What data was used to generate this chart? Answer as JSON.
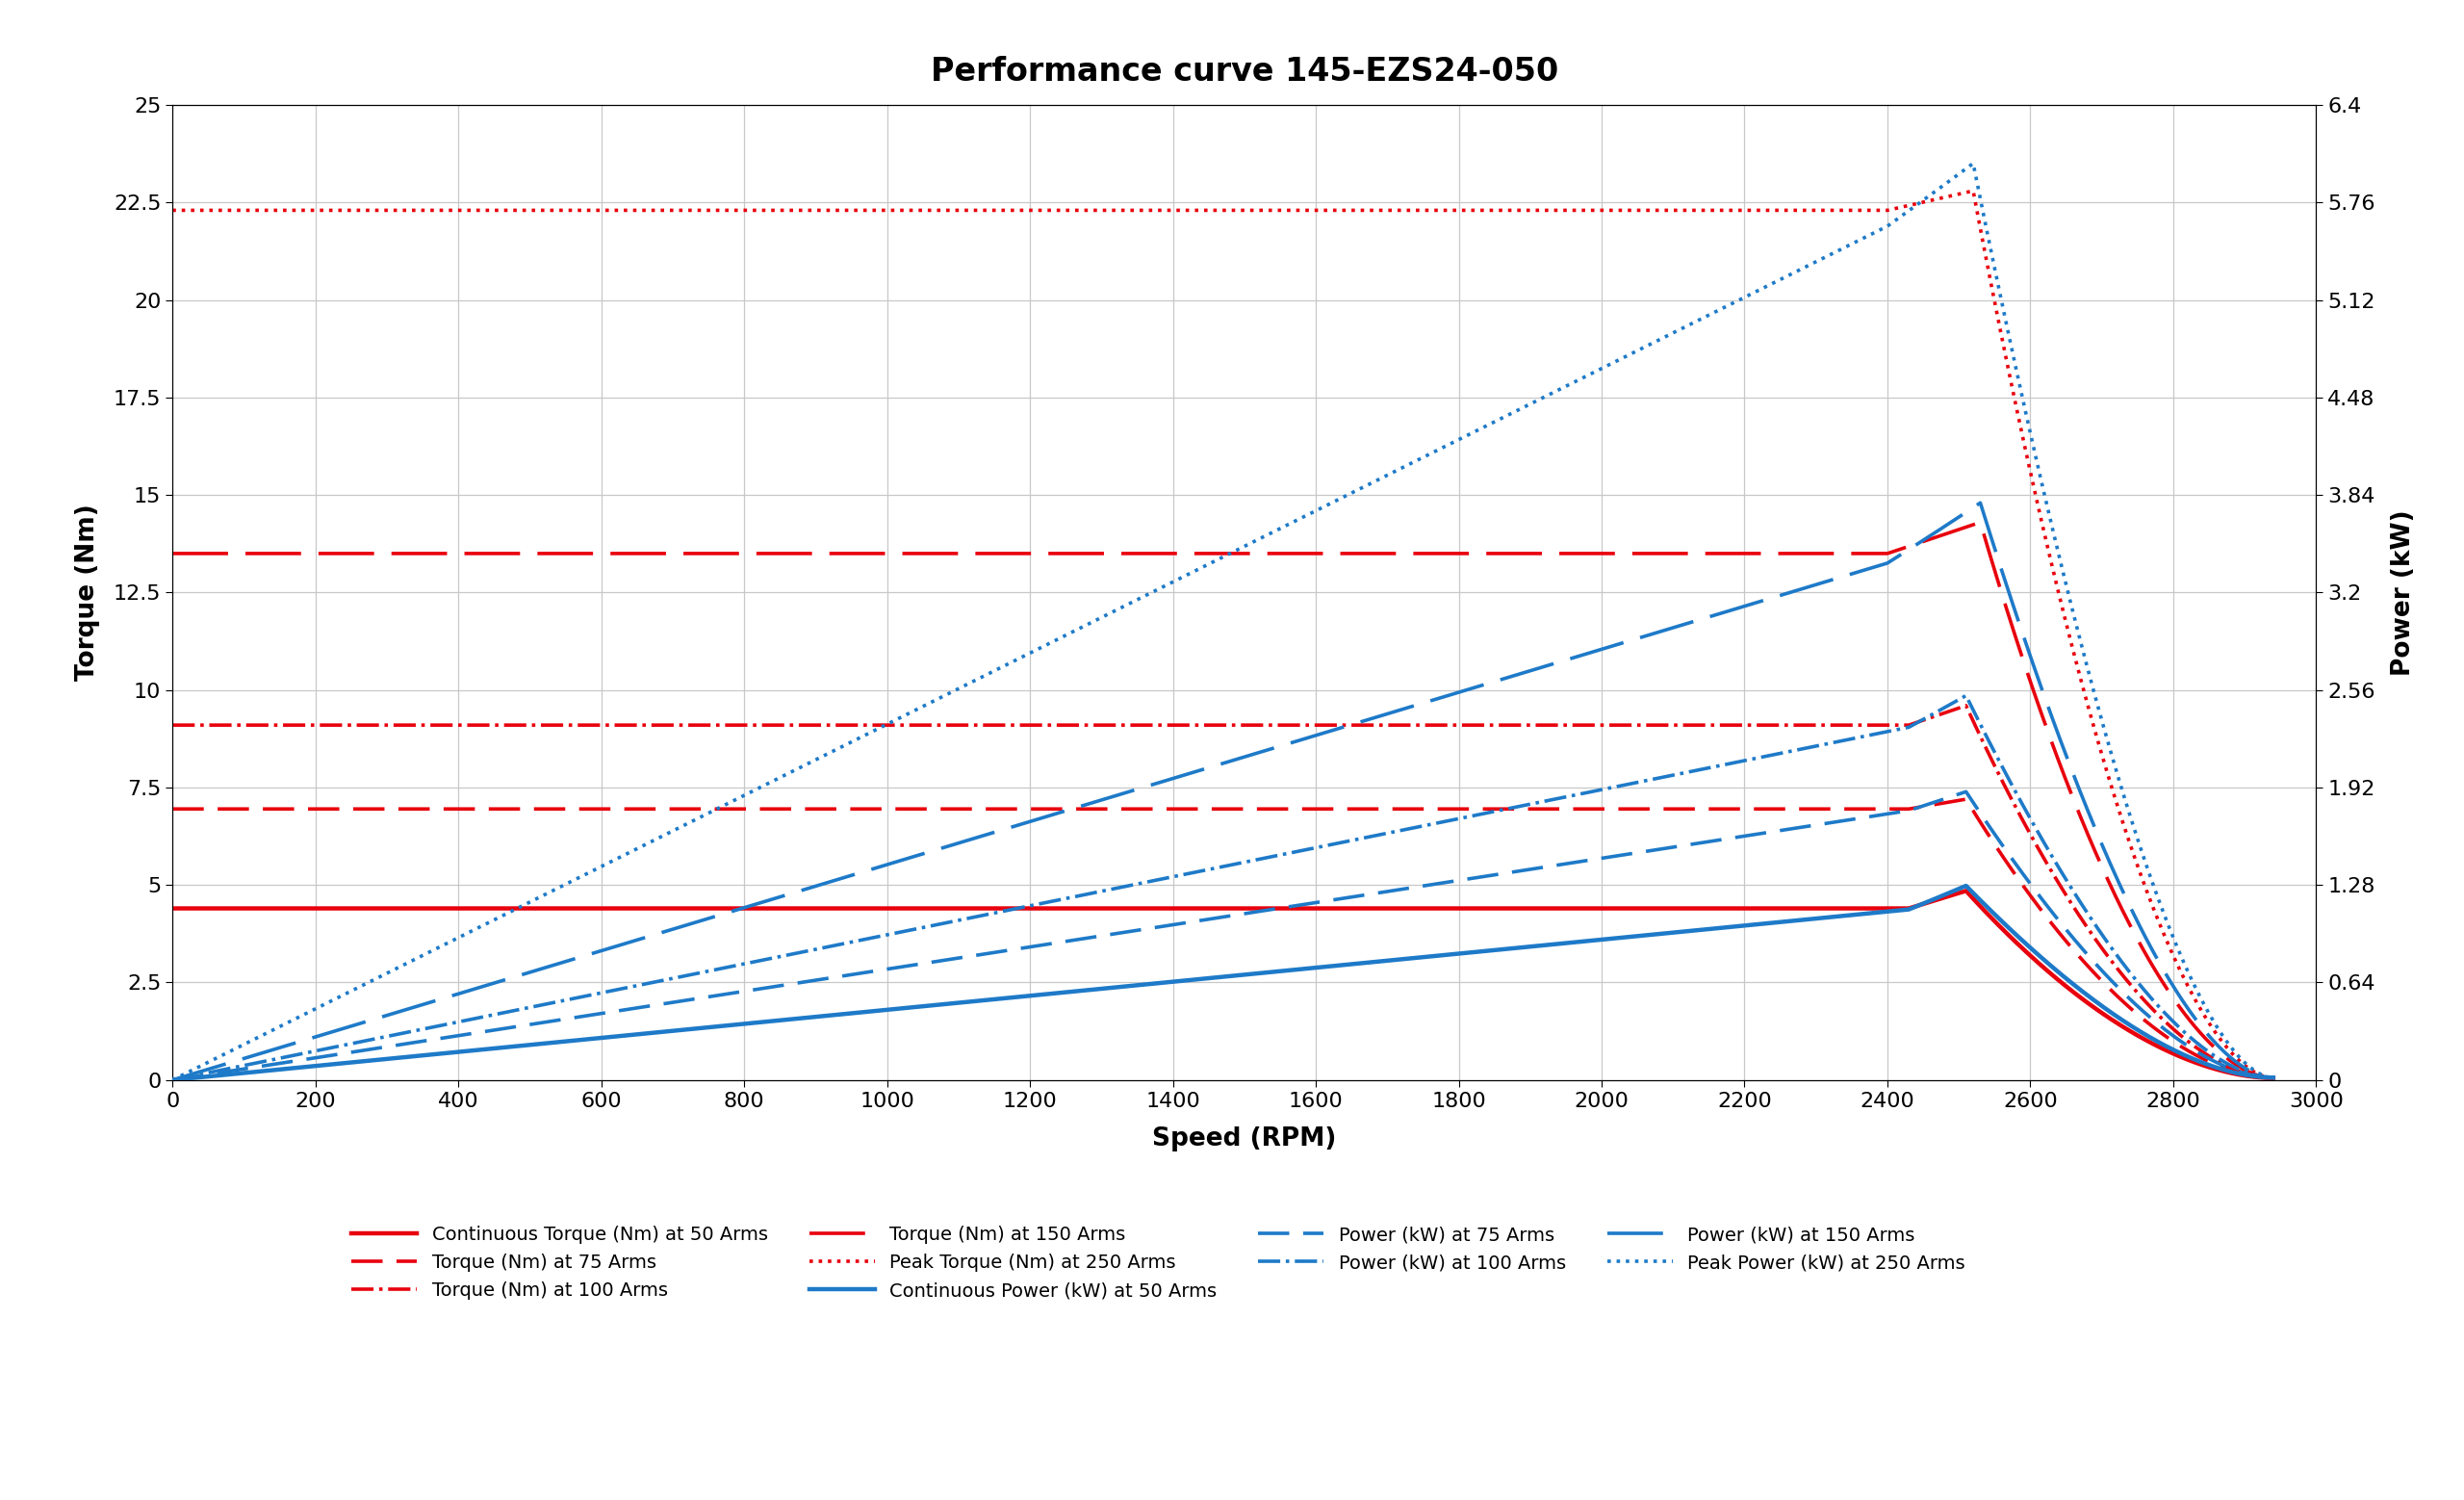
{
  "title": "Performance curve 145-EZS24-050",
  "xlabel": "Speed (RPM)",
  "ylabel_left": "Torque (Nm)",
  "ylabel_right": "Power (kW)",
  "xlim": [
    0,
    3000
  ],
  "ylim_left": [
    0,
    25
  ],
  "ylim_right": [
    0,
    6.4
  ],
  "yticks_left": [
    0,
    2.5,
    5,
    7.5,
    10,
    12.5,
    15,
    17.5,
    20,
    22.5,
    25
  ],
  "yticks_right": [
    0,
    0.64,
    1.28,
    1.92,
    2.56,
    3.2,
    3.84,
    4.48,
    5.12,
    5.76,
    6.4
  ],
  "xticks": [
    0,
    200,
    400,
    600,
    800,
    1000,
    1200,
    1400,
    1600,
    1800,
    2000,
    2200,
    2400,
    2600,
    2800,
    3000
  ],
  "colors": {
    "red": "#E8000D",
    "blue": "#1E7AC8"
  },
  "curves": {
    "torque_50A": {
      "flat": 4.4,
      "flat_end": 2430,
      "peak_spd": 2510,
      "peak_t": 4.85,
      "end_spd": 2940,
      "end_t": 0.05
    },
    "torque_75A": {
      "flat": 6.95,
      "flat_end": 2430,
      "peak_spd": 2510,
      "peak_t": 7.2,
      "end_spd": 2940,
      "end_t": 0.05
    },
    "torque_100A": {
      "flat": 9.1,
      "flat_end": 2430,
      "peak_spd": 2510,
      "peak_t": 9.6,
      "end_spd": 2940,
      "end_t": 0.05
    },
    "torque_150A": {
      "flat": 13.5,
      "flat_end": 2400,
      "peak_spd": 2530,
      "peak_t": 14.3,
      "end_spd": 2940,
      "end_t": 0.05
    },
    "torque_250A": {
      "flat": 22.3,
      "flat_end": 2400,
      "peak_spd": 2520,
      "peak_t": 22.8,
      "end_spd": 2940,
      "end_t": 0.05
    }
  },
  "background_color": "#ffffff",
  "grid_color": "#c8c8c8",
  "title_fontsize": 24,
  "label_fontsize": 19,
  "tick_fontsize": 16,
  "legend_fontsize": 14,
  "lw_main": 3.2,
  "lw_sec": 2.6
}
